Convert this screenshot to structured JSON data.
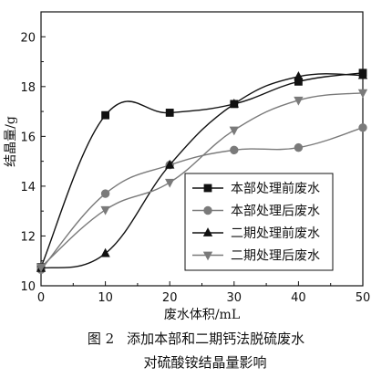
{
  "caption": {
    "label": "图 2",
    "line1": "添加本部和二期钙法脱硫废水",
    "line2": "对硫酸铵结晶量影响"
  },
  "chart_data": {
    "type": "line",
    "xlabel": "废水体积/mL",
    "ylabel": "结晶量/g",
    "xlim": [
      0,
      50
    ],
    "ylim": [
      10,
      21
    ],
    "xticks": [
      0,
      10,
      20,
      30,
      40,
      50
    ],
    "yticks": [
      10,
      12,
      14,
      16,
      18,
      20
    ],
    "grid": false,
    "legend_position": "center-right",
    "series": [
      {
        "name": "本部处理前废水",
        "marker": "square",
        "color": "#111111",
        "x": [
          0,
          10,
          20,
          30,
          40,
          50
        ],
        "y": [
          10.75,
          16.85,
          16.95,
          17.3,
          18.2,
          18.55
        ]
      },
      {
        "name": "本部处理后废水",
        "marker": "circle",
        "color": "#7a7a7a",
        "x": [
          0,
          10,
          20,
          30,
          40,
          50
        ],
        "y": [
          10.65,
          13.7,
          14.85,
          15.45,
          15.55,
          16.35
        ]
      },
      {
        "name": "二期处理前废水",
        "marker": "triangle-up",
        "color": "#111111",
        "x": [
          0,
          10,
          20,
          30,
          40,
          50
        ],
        "y": [
          10.7,
          11.3,
          14.85,
          17.3,
          18.4,
          18.45
        ]
      },
      {
        "name": "二期处理后废水",
        "marker": "triangle-down",
        "color": "#7a7a7a",
        "x": [
          0,
          10,
          20,
          30,
          40,
          50
        ],
        "y": [
          10.75,
          13.05,
          14.15,
          16.25,
          17.45,
          17.75
        ]
      }
    ]
  }
}
